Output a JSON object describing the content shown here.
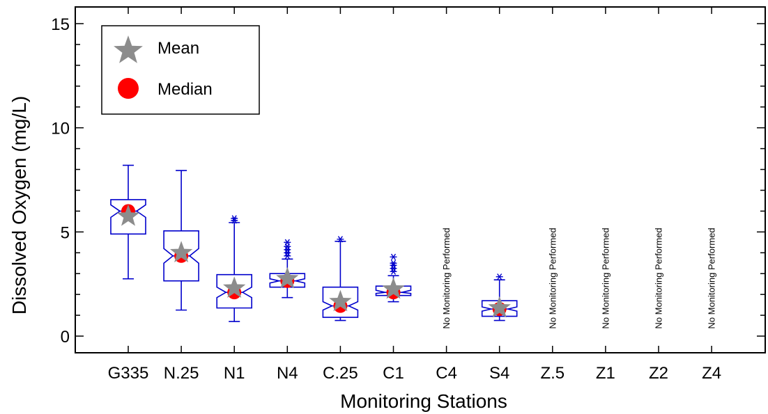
{
  "chart_data": {
    "type": "box",
    "xlabel": "Monitoring Stations",
    "ylabel": "Dissolved Oxygen (mg/L)",
    "ylim": [
      -0.8,
      15.8
    ],
    "yticks": [
      0,
      5,
      10,
      15
    ],
    "grid": false,
    "legend_position": "top-left",
    "legend": [
      {
        "label": "Mean",
        "marker": "star",
        "color": "#8c8c8c"
      },
      {
        "label": "Median",
        "marker": "circle",
        "color": "#ff0000"
      }
    ],
    "box_color": "#0000cc",
    "stations": [
      {
        "name": "G335",
        "min": 2.75,
        "q1": 4.9,
        "median": 6.0,
        "q3": 6.55,
        "max": 8.2,
        "mean": 5.75,
        "notch_low": 5.7,
        "notch_high": 6.3,
        "outliers": []
      },
      {
        "name": "N.25",
        "min": 1.25,
        "q1": 2.65,
        "median": 3.85,
        "q3": 5.05,
        "max": 7.95,
        "mean": 4.0,
        "notch_low": 3.5,
        "notch_high": 4.2,
        "outliers": []
      },
      {
        "name": "N1",
        "min": 0.7,
        "q1": 1.35,
        "median": 2.1,
        "q3": 2.95,
        "max": 5.45,
        "mean": 2.3,
        "notch_low": 1.85,
        "notch_high": 2.35,
        "outliers": [
          5.55,
          5.65
        ]
      },
      {
        "name": "N4",
        "min": 1.85,
        "q1": 2.35,
        "median": 2.65,
        "q3": 3.0,
        "max": 3.7,
        "mean": 2.75,
        "notch_low": 2.55,
        "notch_high": 2.75,
        "outliers": [
          3.85,
          4.0,
          4.15,
          4.3,
          4.5
        ]
      },
      {
        "name": "C.25",
        "min": 0.75,
        "q1": 0.9,
        "median": 1.45,
        "q3": 2.35,
        "max": 4.55,
        "mean": 1.65,
        "notch_low": 1.25,
        "notch_high": 1.65,
        "outliers": [
          4.65
        ]
      },
      {
        "name": "C1",
        "min": 1.65,
        "q1": 1.95,
        "median": 2.1,
        "q3": 2.4,
        "max": 2.9,
        "mean": 2.25,
        "notch_low": 2.05,
        "notch_high": 2.2,
        "outliers": [
          3.1,
          3.25,
          3.4,
          3.5,
          3.8
        ]
      },
      {
        "name": "C4",
        "no_data": true,
        "note": "No Monitoring Performed"
      },
      {
        "name": "S4",
        "min": 0.75,
        "q1": 0.95,
        "median": 1.3,
        "q3": 1.7,
        "max": 2.7,
        "mean": 1.35,
        "notch_low": 1.2,
        "notch_high": 1.4,
        "outliers": [
          2.85
        ]
      },
      {
        "name": "Z.5",
        "no_data": true,
        "note": "No Monitoring Performed"
      },
      {
        "name": "Z1",
        "no_data": true,
        "note": "No Monitoring Performed"
      },
      {
        "name": "Z2",
        "no_data": true,
        "note": "No Monitoring Performed"
      },
      {
        "name": "Z4",
        "no_data": true,
        "note": "No Monitoring Performed"
      }
    ]
  }
}
